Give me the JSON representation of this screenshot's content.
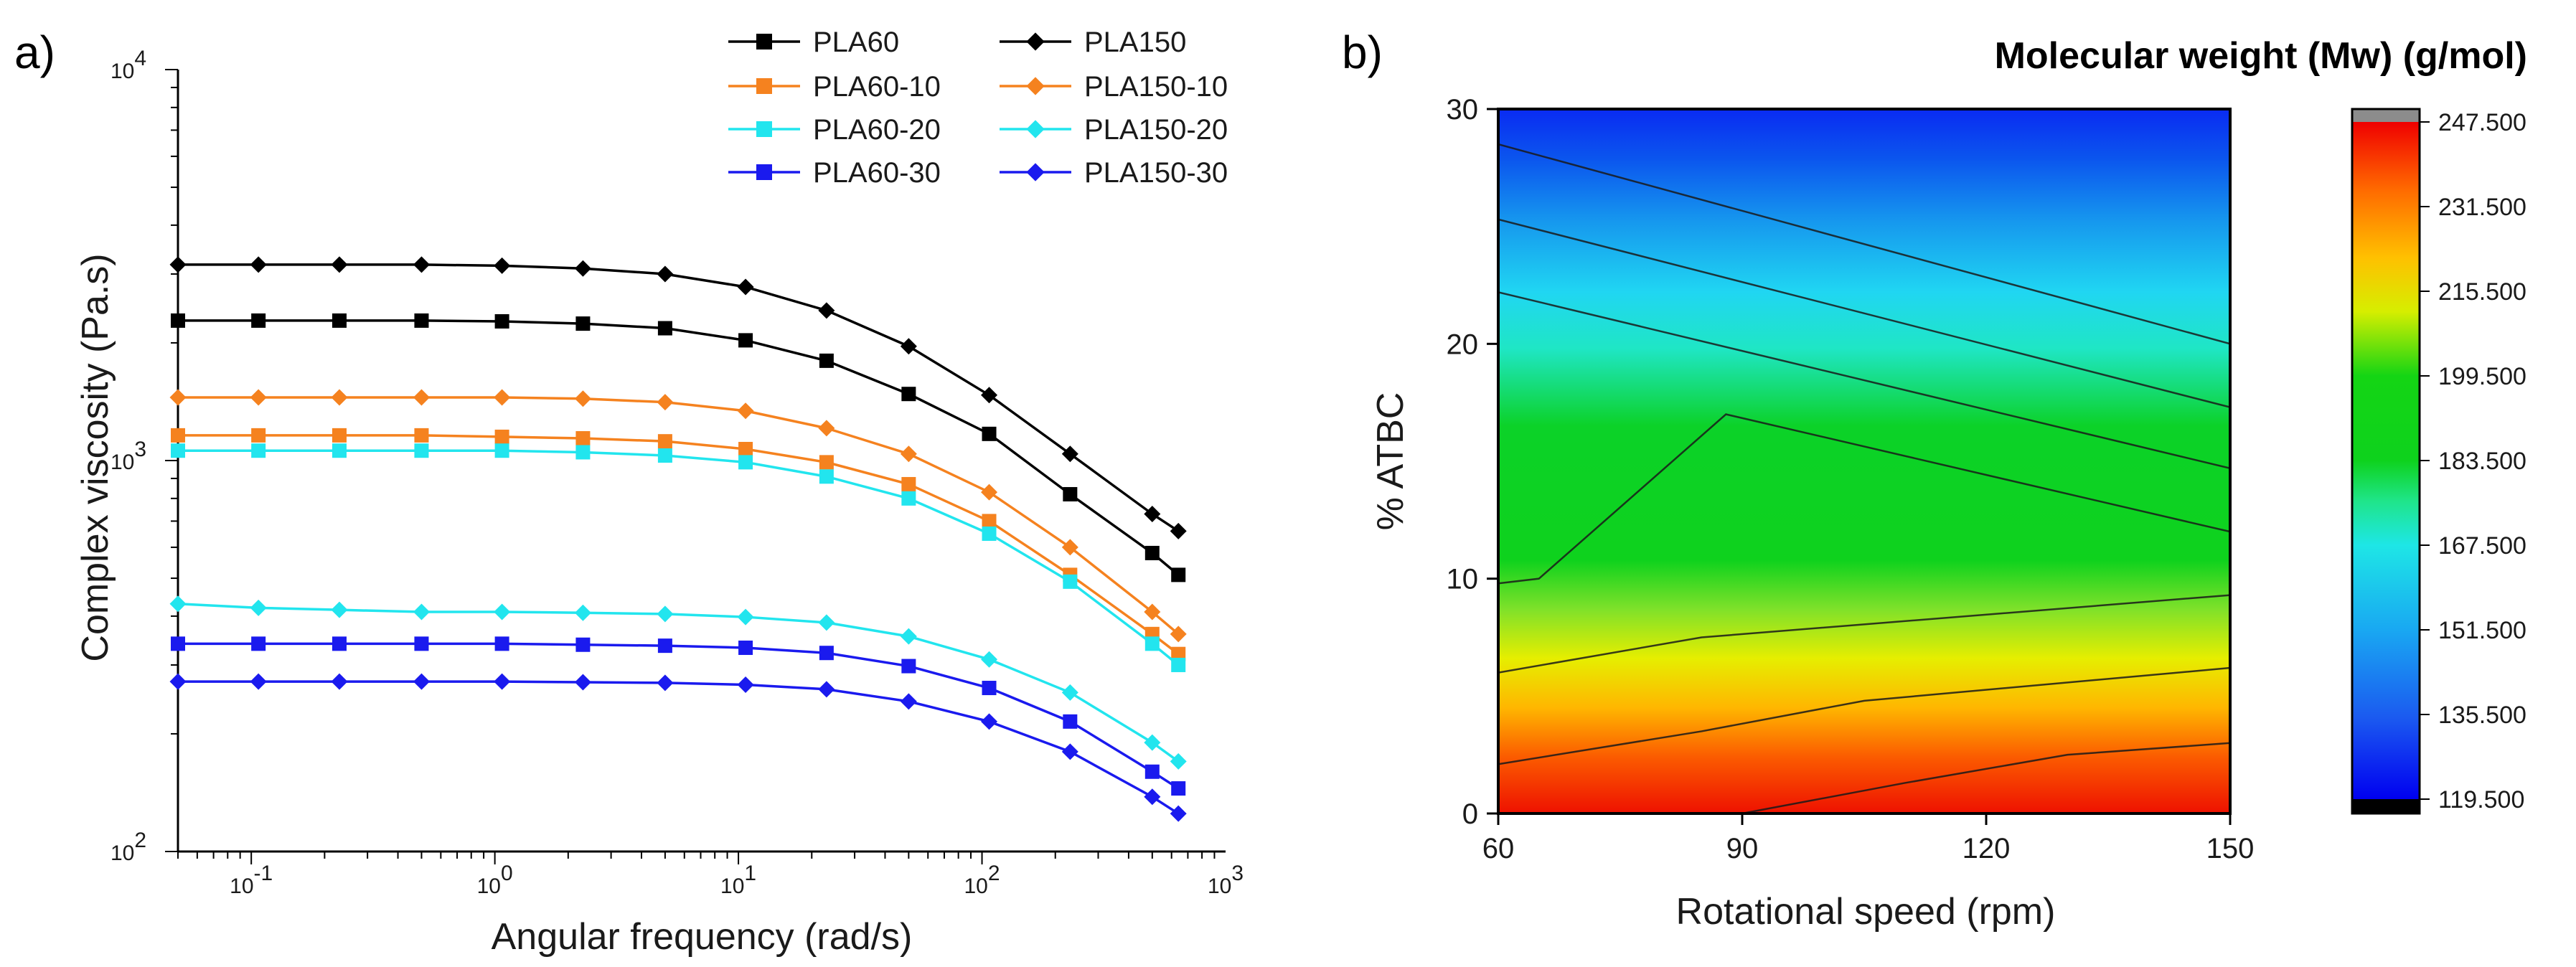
{
  "chart_data": [
    {
      "panel_label": "a)",
      "type": "line",
      "title": "",
      "xlabel": "Angular frequency (rad/s)",
      "ylabel": "Complex viscosity (Pa.s)",
      "xscale": "log",
      "yscale": "log",
      "xlim": [
        0.05,
        1000
      ],
      "ylim": [
        100,
        10000
      ],
      "x_ticks": [
        {
          "value": 0.1,
          "mant": "10",
          "exp": "-1"
        },
        {
          "value": 1,
          "mant": "10",
          "exp": "0"
        },
        {
          "value": 10,
          "mant": "10",
          "exp": "1"
        },
        {
          "value": 100,
          "mant": "10",
          "exp": "2"
        },
        {
          "value": 1000,
          "mant": "10",
          "exp": "3"
        }
      ],
      "y_ticks": [
        {
          "value": 100,
          "mant": "10",
          "exp": "2"
        },
        {
          "value": 1000,
          "mant": "10",
          "exp": "3"
        },
        {
          "value": 10000,
          "mant": "10",
          "exp": "4"
        }
      ],
      "legend_position": "top-right",
      "x": [
        0.05,
        0.107,
        0.23,
        0.5,
        1.07,
        2.3,
        5,
        10.7,
        23,
        50,
        107,
        230,
        500,
        640
      ],
      "series": [
        {
          "name": "PLA60",
          "color": "#000000",
          "marker": "square",
          "values": [
            2280,
            2280,
            2280,
            2280,
            2270,
            2240,
            2180,
            2030,
            1800,
            1480,
            1170,
            820,
            580,
            510
          ]
        },
        {
          "name": "PLA150",
          "color": "#000000",
          "marker": "diamond",
          "values": [
            3170,
            3170,
            3170,
            3170,
            3150,
            3100,
            3000,
            2780,
            2420,
            1960,
            1470,
            1040,
            730,
            660
          ]
        },
        {
          "name": "PLA60-10",
          "color": "#f5821f",
          "marker": "square",
          "values": [
            1160,
            1160,
            1160,
            1160,
            1150,
            1140,
            1120,
            1070,
            990,
            870,
            700,
            510,
            360,
            320
          ]
        },
        {
          "name": "PLA150-10",
          "color": "#f5821f",
          "marker": "diamond",
          "values": [
            1450,
            1450,
            1450,
            1450,
            1450,
            1440,
            1410,
            1340,
            1210,
            1040,
            830,
            600,
            410,
            360
          ]
        },
        {
          "name": "PLA60-20",
          "color": "#22e5ee",
          "marker": "square",
          "values": [
            1060,
            1060,
            1060,
            1060,
            1060,
            1050,
            1030,
            990,
            910,
            800,
            650,
            490,
            340,
            300
          ]
        },
        {
          "name": "PLA150-20",
          "color": "#22e5ee",
          "marker": "diamond",
          "values": [
            430,
            420,
            415,
            410,
            410,
            408,
            405,
            398,
            385,
            355,
            310,
            255,
            190,
            170
          ]
        },
        {
          "name": "PLA60-30",
          "color": "#1a1aee",
          "marker": "square",
          "values": [
            340,
            340,
            340,
            340,
            340,
            338,
            336,
            332,
            322,
            298,
            262,
            215,
            160,
            145
          ]
        },
        {
          "name": "PLA150-30",
          "color": "#1a1aee",
          "marker": "diamond",
          "values": [
            272,
            272,
            272,
            272,
            272,
            271,
            270,
            267,
            260,
            242,
            215,
            180,
            138,
            125
          ]
        }
      ]
    },
    {
      "panel_label": "b)",
      "type": "heatmap",
      "title": "Molecular weight (Mw) (g/mol)",
      "xlabel": "Rotational speed (rpm)",
      "ylabel": "% ATBC",
      "xlim": [
        60,
        150
      ],
      "ylim": [
        0,
        30
      ],
      "x_ticks": [
        60,
        90,
        120,
        150
      ],
      "y_ticks": [
        0,
        10,
        20,
        30
      ],
      "colorbar": {
        "ticks": [
          "119.500",
          "135.500",
          "151.500",
          "167.500",
          "183.500",
          "199.500",
          "215.500",
          "231.500",
          "247.500"
        ],
        "range": [
          119.5,
          247.5
        ]
      },
      "contour_lines_xy": [
        [
          [
            60,
            28.5
          ],
          [
            150,
            20.0
          ]
        ],
        [
          [
            60,
            25.3
          ],
          [
            150,
            17.3
          ]
        ],
        [
          [
            60,
            22.2
          ],
          [
            150,
            14.7
          ]
        ],
        [
          [
            60,
            9.8
          ],
          [
            65,
            10.0
          ],
          [
            88,
            17.0
          ],
          [
            150,
            12.0
          ]
        ],
        [
          [
            60,
            6.0
          ],
          [
            85,
            7.5
          ],
          [
            150,
            9.3
          ]
        ],
        [
          [
            60,
            2.1
          ],
          [
            85,
            3.5
          ],
          [
            105,
            4.8
          ],
          [
            150,
            6.2
          ]
        ],
        [
          [
            90,
            0.0
          ],
          [
            110,
            1.3
          ],
          [
            130,
            2.5
          ],
          [
            150,
            3.0
          ]
        ]
      ]
    }
  ],
  "colors": {
    "PLA60": "#000000",
    "PLA150": "#000000",
    "series_10": "#f5821f",
    "series_20": "#22e5ee",
    "series_30": "#1a1aee"
  }
}
